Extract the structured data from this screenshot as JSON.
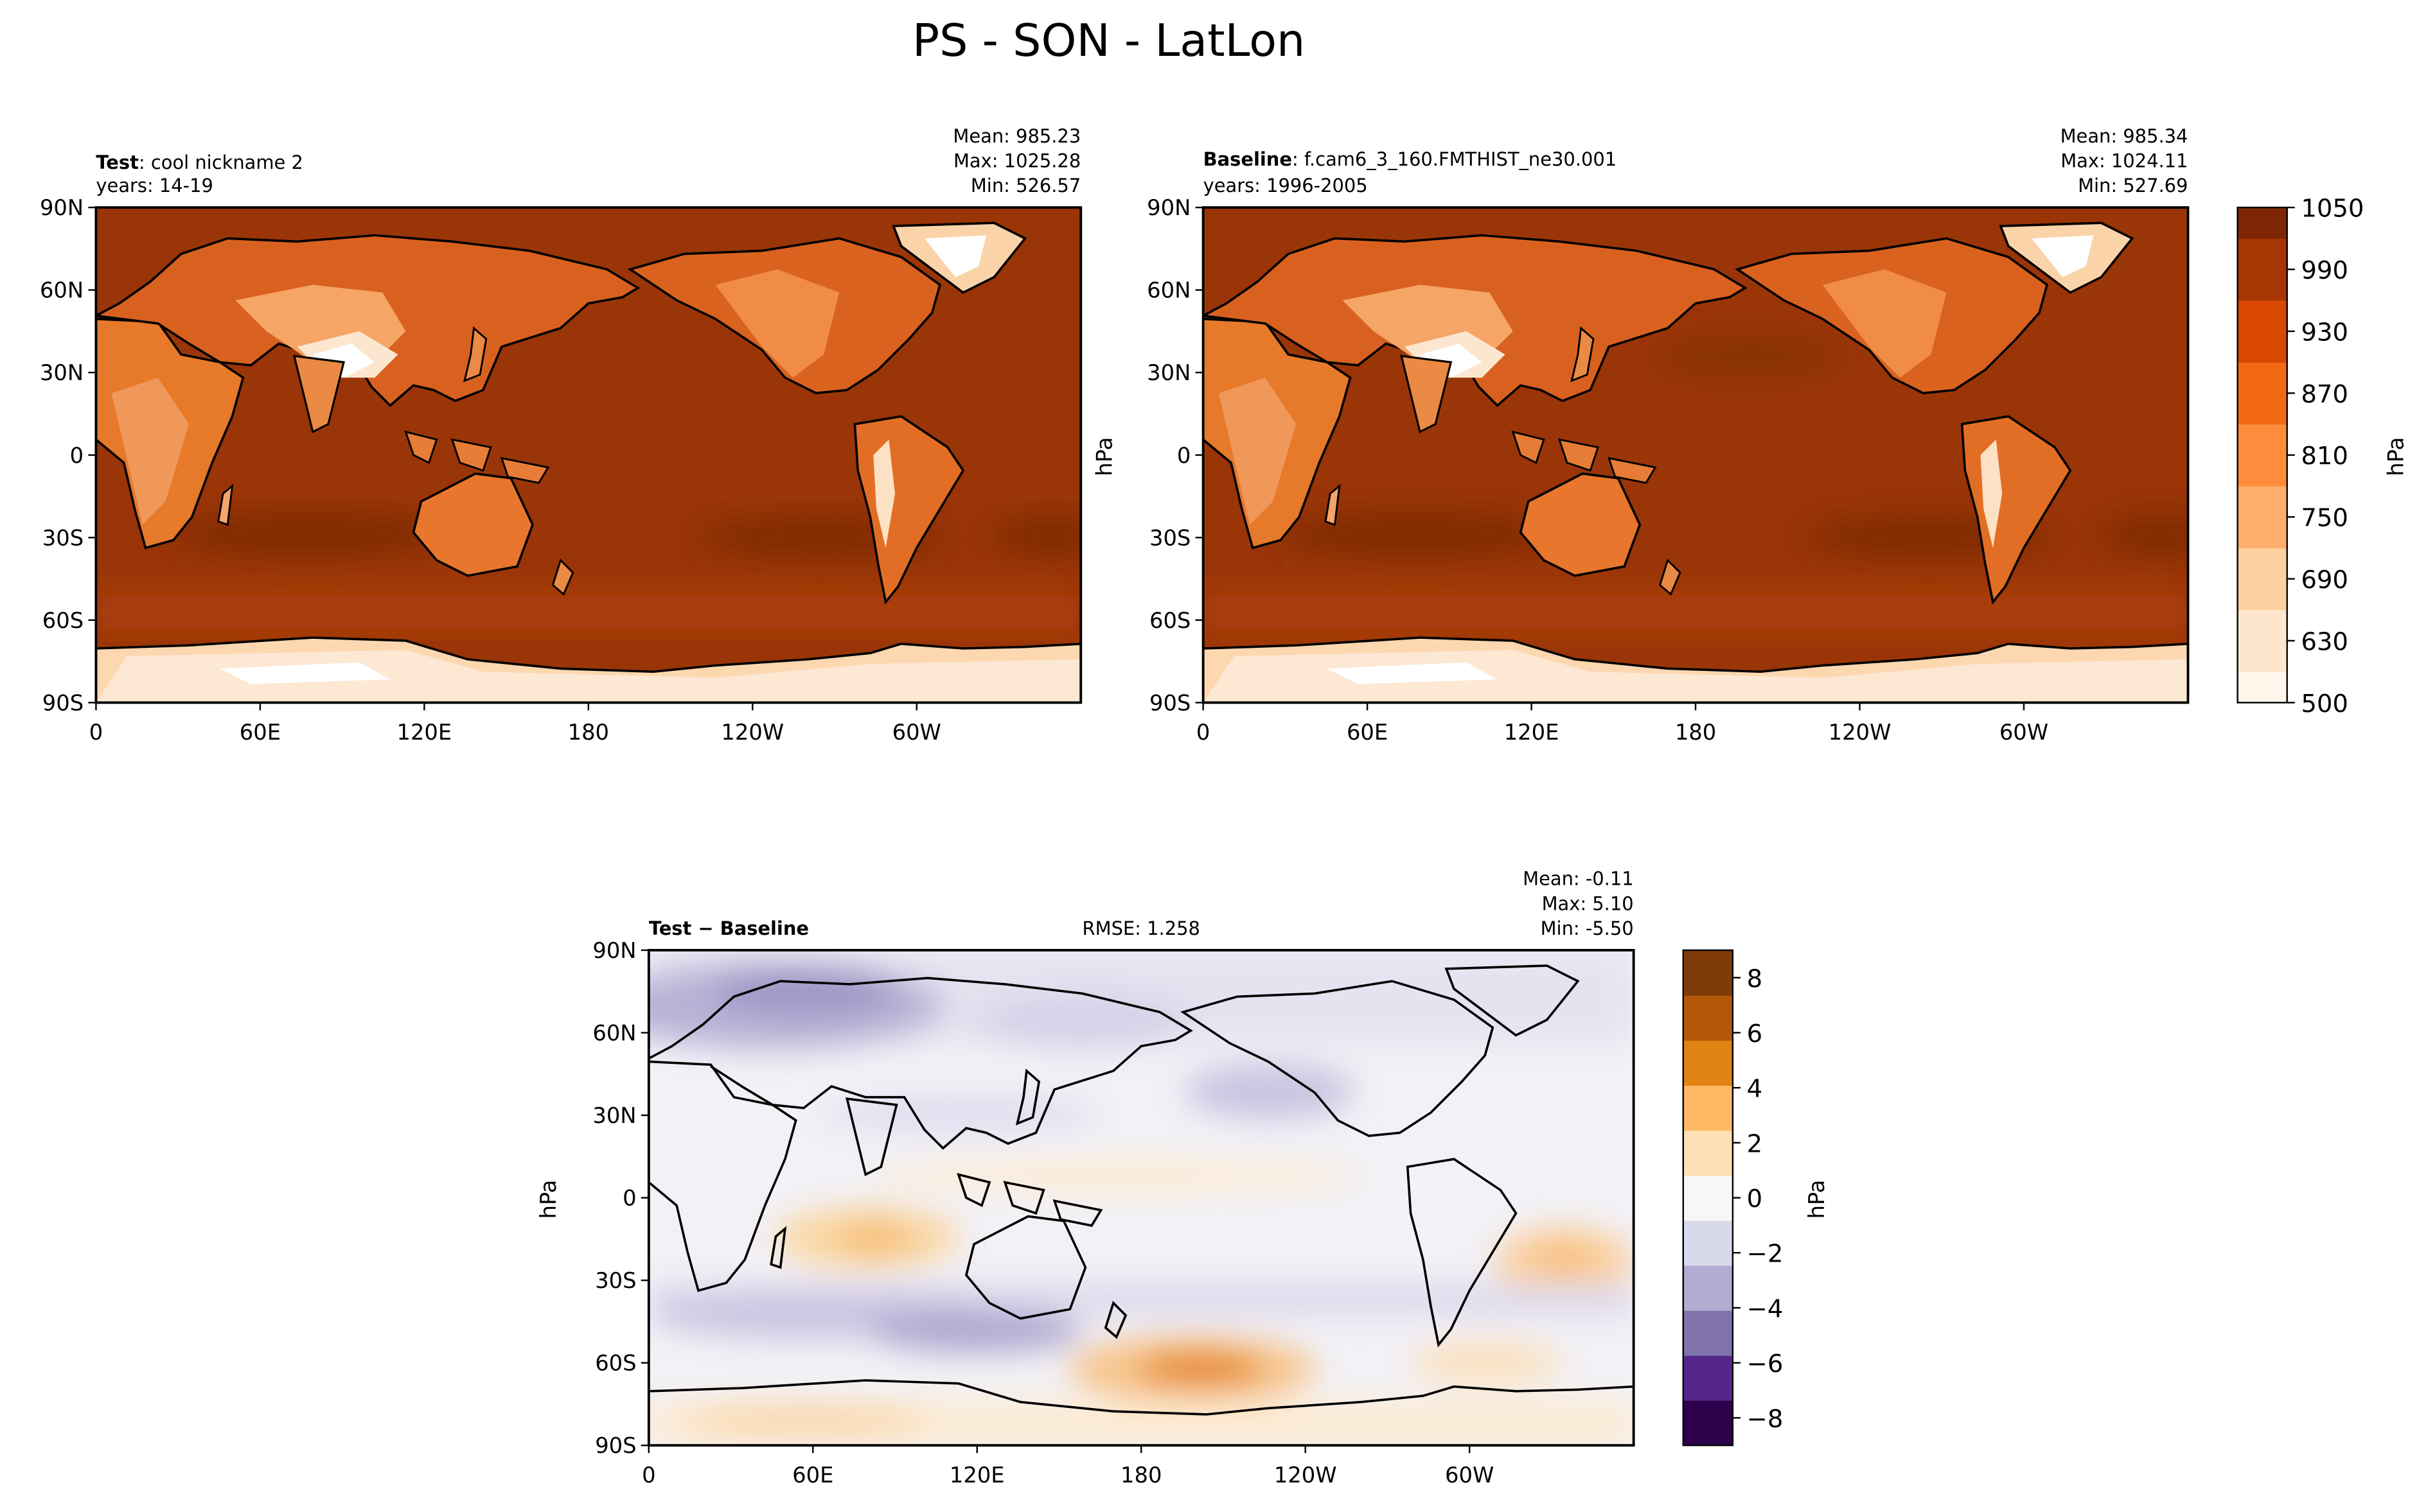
{
  "figure": {
    "title": "PS - SON - LatLon"
  },
  "colors": {
    "test_baseline_cmap": [
      "#fff5eb",
      "#fee6ce",
      "#fdd0a2",
      "#fdae6b",
      "#fd8d3c",
      "#f16913",
      "#d94801",
      "#a63603",
      "#7f2704"
    ],
    "diff_cmap": [
      "#2d004b",
      "#542788",
      "#8073ac",
      "#b2abd2",
      "#d8daeb",
      "#f7f7f7",
      "#fee0b6",
      "#fdb863",
      "#e08214",
      "#b35806",
      "#7f3b08"
    ],
    "land": "#f3a463",
    "ocean_test": "#9a3508",
    "coast": "#000000"
  },
  "chart_data": [
    {
      "type": "heatmap",
      "name": "Test",
      "title_bold": "Test",
      "title_rest": ": cool nickname 2",
      "years": "years: 14-19",
      "stats": {
        "mean": "Mean: 985.23",
        "max": "Max: 1025.28",
        "min": "Min: 526.57"
      },
      "xticks": [
        "0",
        "60E",
        "120E",
        "180",
        "120W",
        "60W"
      ],
      "yticks": [
        "90N",
        "60N",
        "30N",
        "0",
        "30S",
        "60S",
        "90S"
      ],
      "units": "hPa",
      "range": [
        500,
        1050
      ]
    },
    {
      "type": "heatmap",
      "name": "Baseline",
      "title_bold": "Baseline",
      "title_rest": ": f.cam6_3_160.FMTHIST_ne30.001",
      "years": "years: 1996-2005",
      "stats": {
        "mean": "Mean: 985.34",
        "max": "Max: 1024.11",
        "min": "Min: 527.69"
      },
      "xticks": [
        "0",
        "60E",
        "120E",
        "180",
        "120W",
        "60W"
      ],
      "yticks": [
        "90N",
        "60N",
        "30N",
        "0",
        "30S",
        "60S",
        "90S"
      ],
      "ylabel": "hPa",
      "units": "hPa",
      "range": [
        500,
        1050
      ],
      "colorbar_ticks": [
        "1050",
        "990",
        "930",
        "870",
        "810",
        "750",
        "690",
        "630",
        "500"
      ],
      "colorbar_label": "hPa"
    },
    {
      "type": "heatmap",
      "name": "Test - Baseline",
      "title_bold": "Test − Baseline",
      "rmse": "RMSE: 1.258",
      "stats": {
        "mean": "Mean: -0.11",
        "max": "Max:  5.10",
        "min": "Min: -5.50"
      },
      "xticks": [
        "0",
        "60E",
        "120E",
        "180",
        "120W",
        "60W"
      ],
      "yticks": [
        "90N",
        "60N",
        "30N",
        "0",
        "30S",
        "60S",
        "90S"
      ],
      "ylabel": "hPa",
      "units": "hPa",
      "range": [
        -9,
        9
      ],
      "colorbar_ticks": [
        "8",
        "6",
        "4",
        "2",
        "0",
        "−2",
        "−4",
        "−6",
        "−8"
      ],
      "colorbar_label": "hPa"
    }
  ]
}
